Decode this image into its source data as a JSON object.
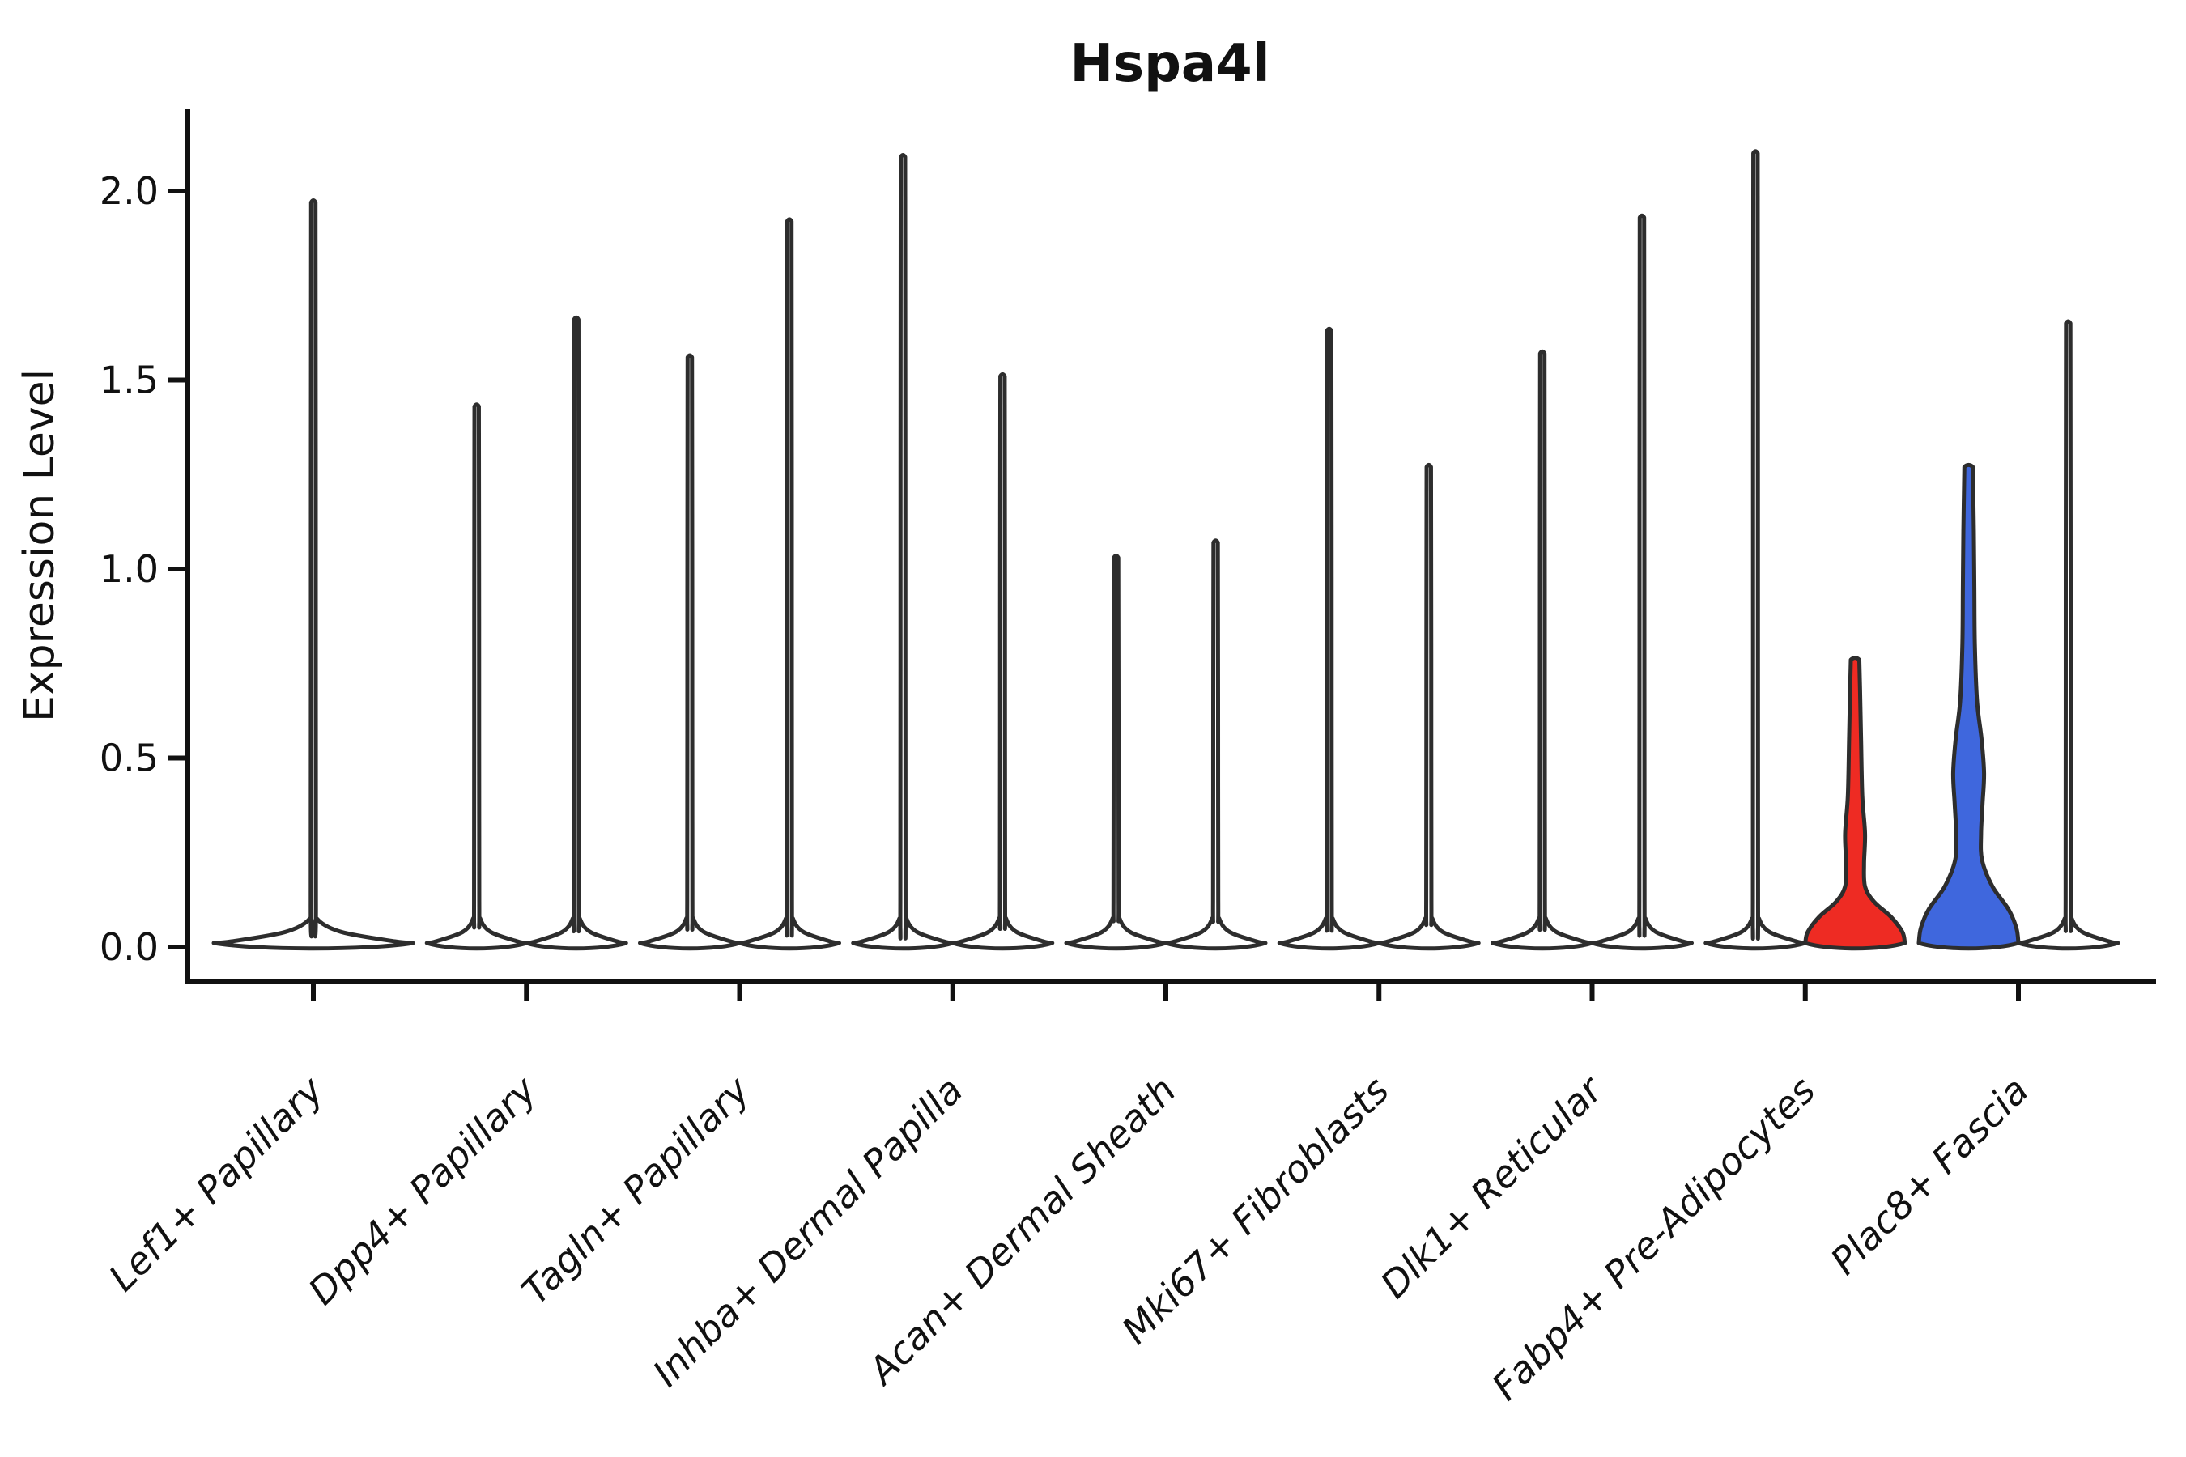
{
  "title": "Hspa4l",
  "y_axis": {
    "label": "Expression Level",
    "tick_labels": [
      "0.0",
      "0.5",
      "1.0",
      "1.5",
      "2.0"
    ],
    "tick_values": [
      0.0,
      0.5,
      1.0,
      1.5,
      2.0
    ]
  },
  "x_axis": {
    "categories": [
      "Lef1+ Papillary",
      "Dpp4+ Papillary",
      "Tagln+ Papillary",
      "Inhba+ Dermal Papilla",
      "Acan+ Dermal Sheath",
      "Mki67+ Fibroblasts",
      "Dlk1+ Reticular",
      "Fabp4+ Pre-Adipocytes",
      "Plac8+ Fascia"
    ],
    "label_rotation_deg": 45
  },
  "style": {
    "background": "#ffffff",
    "violin_outline": "#2d2d2d",
    "axis_color": "#111111",
    "default_fill": "#ffffff",
    "highlight_red": "#ee2b23",
    "highlight_blue": "#3f67dd"
  },
  "chart_data": {
    "type": "violin",
    "title": "Hspa4l",
    "xlabel": "",
    "ylabel": "Expression Level",
    "ylim": [
      0,
      2.2
    ],
    "grid": false,
    "legend": "none",
    "categories": [
      "Lef1+ Papillary",
      "Dpp4+ Papillary",
      "Tagln+ Papillary",
      "Inhba+ Dermal Papilla",
      "Acan+ Dermal Sheath",
      "Mki67+ Fibroblasts",
      "Dlk1+ Reticular",
      "Fabp4+ Pre-Adipocytes",
      "Plac8+ Fascia"
    ],
    "violins": [
      {
        "category": "Lef1+ Papillary",
        "slot": "full",
        "max_expression": 1.97,
        "fill": "#ffffff",
        "shape": "spike"
      },
      {
        "category": "Dpp4+ Papillary",
        "slot": "left",
        "max_expression": 1.43,
        "fill": "#ffffff",
        "shape": "spike"
      },
      {
        "category": "Dpp4+ Papillary",
        "slot": "right",
        "max_expression": 1.66,
        "fill": "#ffffff",
        "shape": "spike"
      },
      {
        "category": "Tagln+ Papillary",
        "slot": "left",
        "max_expression": 1.56,
        "fill": "#ffffff",
        "shape": "spike"
      },
      {
        "category": "Tagln+ Papillary",
        "slot": "right",
        "max_expression": 1.92,
        "fill": "#ffffff",
        "shape": "spike"
      },
      {
        "category": "Inhba+ Dermal Papilla",
        "slot": "left",
        "max_expression": 2.09,
        "fill": "#ffffff",
        "shape": "spike"
      },
      {
        "category": "Inhba+ Dermal Papilla",
        "slot": "right",
        "max_expression": 1.51,
        "fill": "#ffffff",
        "shape": "spike"
      },
      {
        "category": "Acan+ Dermal Sheath",
        "slot": "left",
        "max_expression": 1.03,
        "fill": "#ffffff",
        "shape": "spike"
      },
      {
        "category": "Acan+ Dermal Sheath",
        "slot": "right",
        "max_expression": 1.07,
        "fill": "#ffffff",
        "shape": "spike"
      },
      {
        "category": "Mki67+ Fibroblasts",
        "slot": "left",
        "max_expression": 1.63,
        "fill": "#ffffff",
        "shape": "spike"
      },
      {
        "category": "Mki67+ Fibroblasts",
        "slot": "right",
        "max_expression": 1.27,
        "fill": "#ffffff",
        "shape": "spike"
      },
      {
        "category": "Dlk1+ Reticular",
        "slot": "left",
        "max_expression": 1.57,
        "fill": "#ffffff",
        "shape": "spike"
      },
      {
        "category": "Dlk1+ Reticular",
        "slot": "right",
        "max_expression": 1.93,
        "fill": "#ffffff",
        "shape": "spike"
      },
      {
        "category": "Fabp4+ Pre-Adipocytes",
        "slot": "left",
        "max_expression": 2.1,
        "fill": "#ffffff",
        "shape": "spike"
      },
      {
        "category": "Fabp4+ Pre-Adipocytes",
        "slot": "right",
        "max_expression": 0.76,
        "fill": "#ee2b23",
        "shape": "body",
        "profile": [
          [
            0.0,
            1.0
          ],
          [
            0.04,
            0.95
          ],
          [
            0.08,
            0.72
          ],
          [
            0.12,
            0.38
          ],
          [
            0.16,
            0.2
          ],
          [
            0.22,
            0.18
          ],
          [
            0.3,
            0.2
          ],
          [
            0.4,
            0.145
          ],
          [
            0.55,
            0.12
          ],
          [
            0.68,
            0.1
          ],
          [
            0.76,
            0.085
          ]
        ]
      },
      {
        "category": "Plac8+ Fascia",
        "slot": "left",
        "max_expression": 1.27,
        "fill": "#3f67dd",
        "shape": "body",
        "profile": [
          [
            0.0,
            1.0
          ],
          [
            0.05,
            0.96
          ],
          [
            0.1,
            0.8
          ],
          [
            0.16,
            0.48
          ],
          [
            0.23,
            0.27
          ],
          [
            0.3,
            0.25
          ],
          [
            0.38,
            0.28
          ],
          [
            0.46,
            0.31
          ],
          [
            0.55,
            0.26
          ],
          [
            0.65,
            0.17
          ],
          [
            0.8,
            0.125
          ],
          [
            0.95,
            0.115
          ],
          [
            1.1,
            0.105
          ],
          [
            1.27,
            0.085
          ]
        ]
      },
      {
        "category": "Plac8+ Fascia",
        "slot": "right",
        "max_expression": 1.65,
        "fill": "#ffffff",
        "shape": "spike"
      }
    ]
  }
}
